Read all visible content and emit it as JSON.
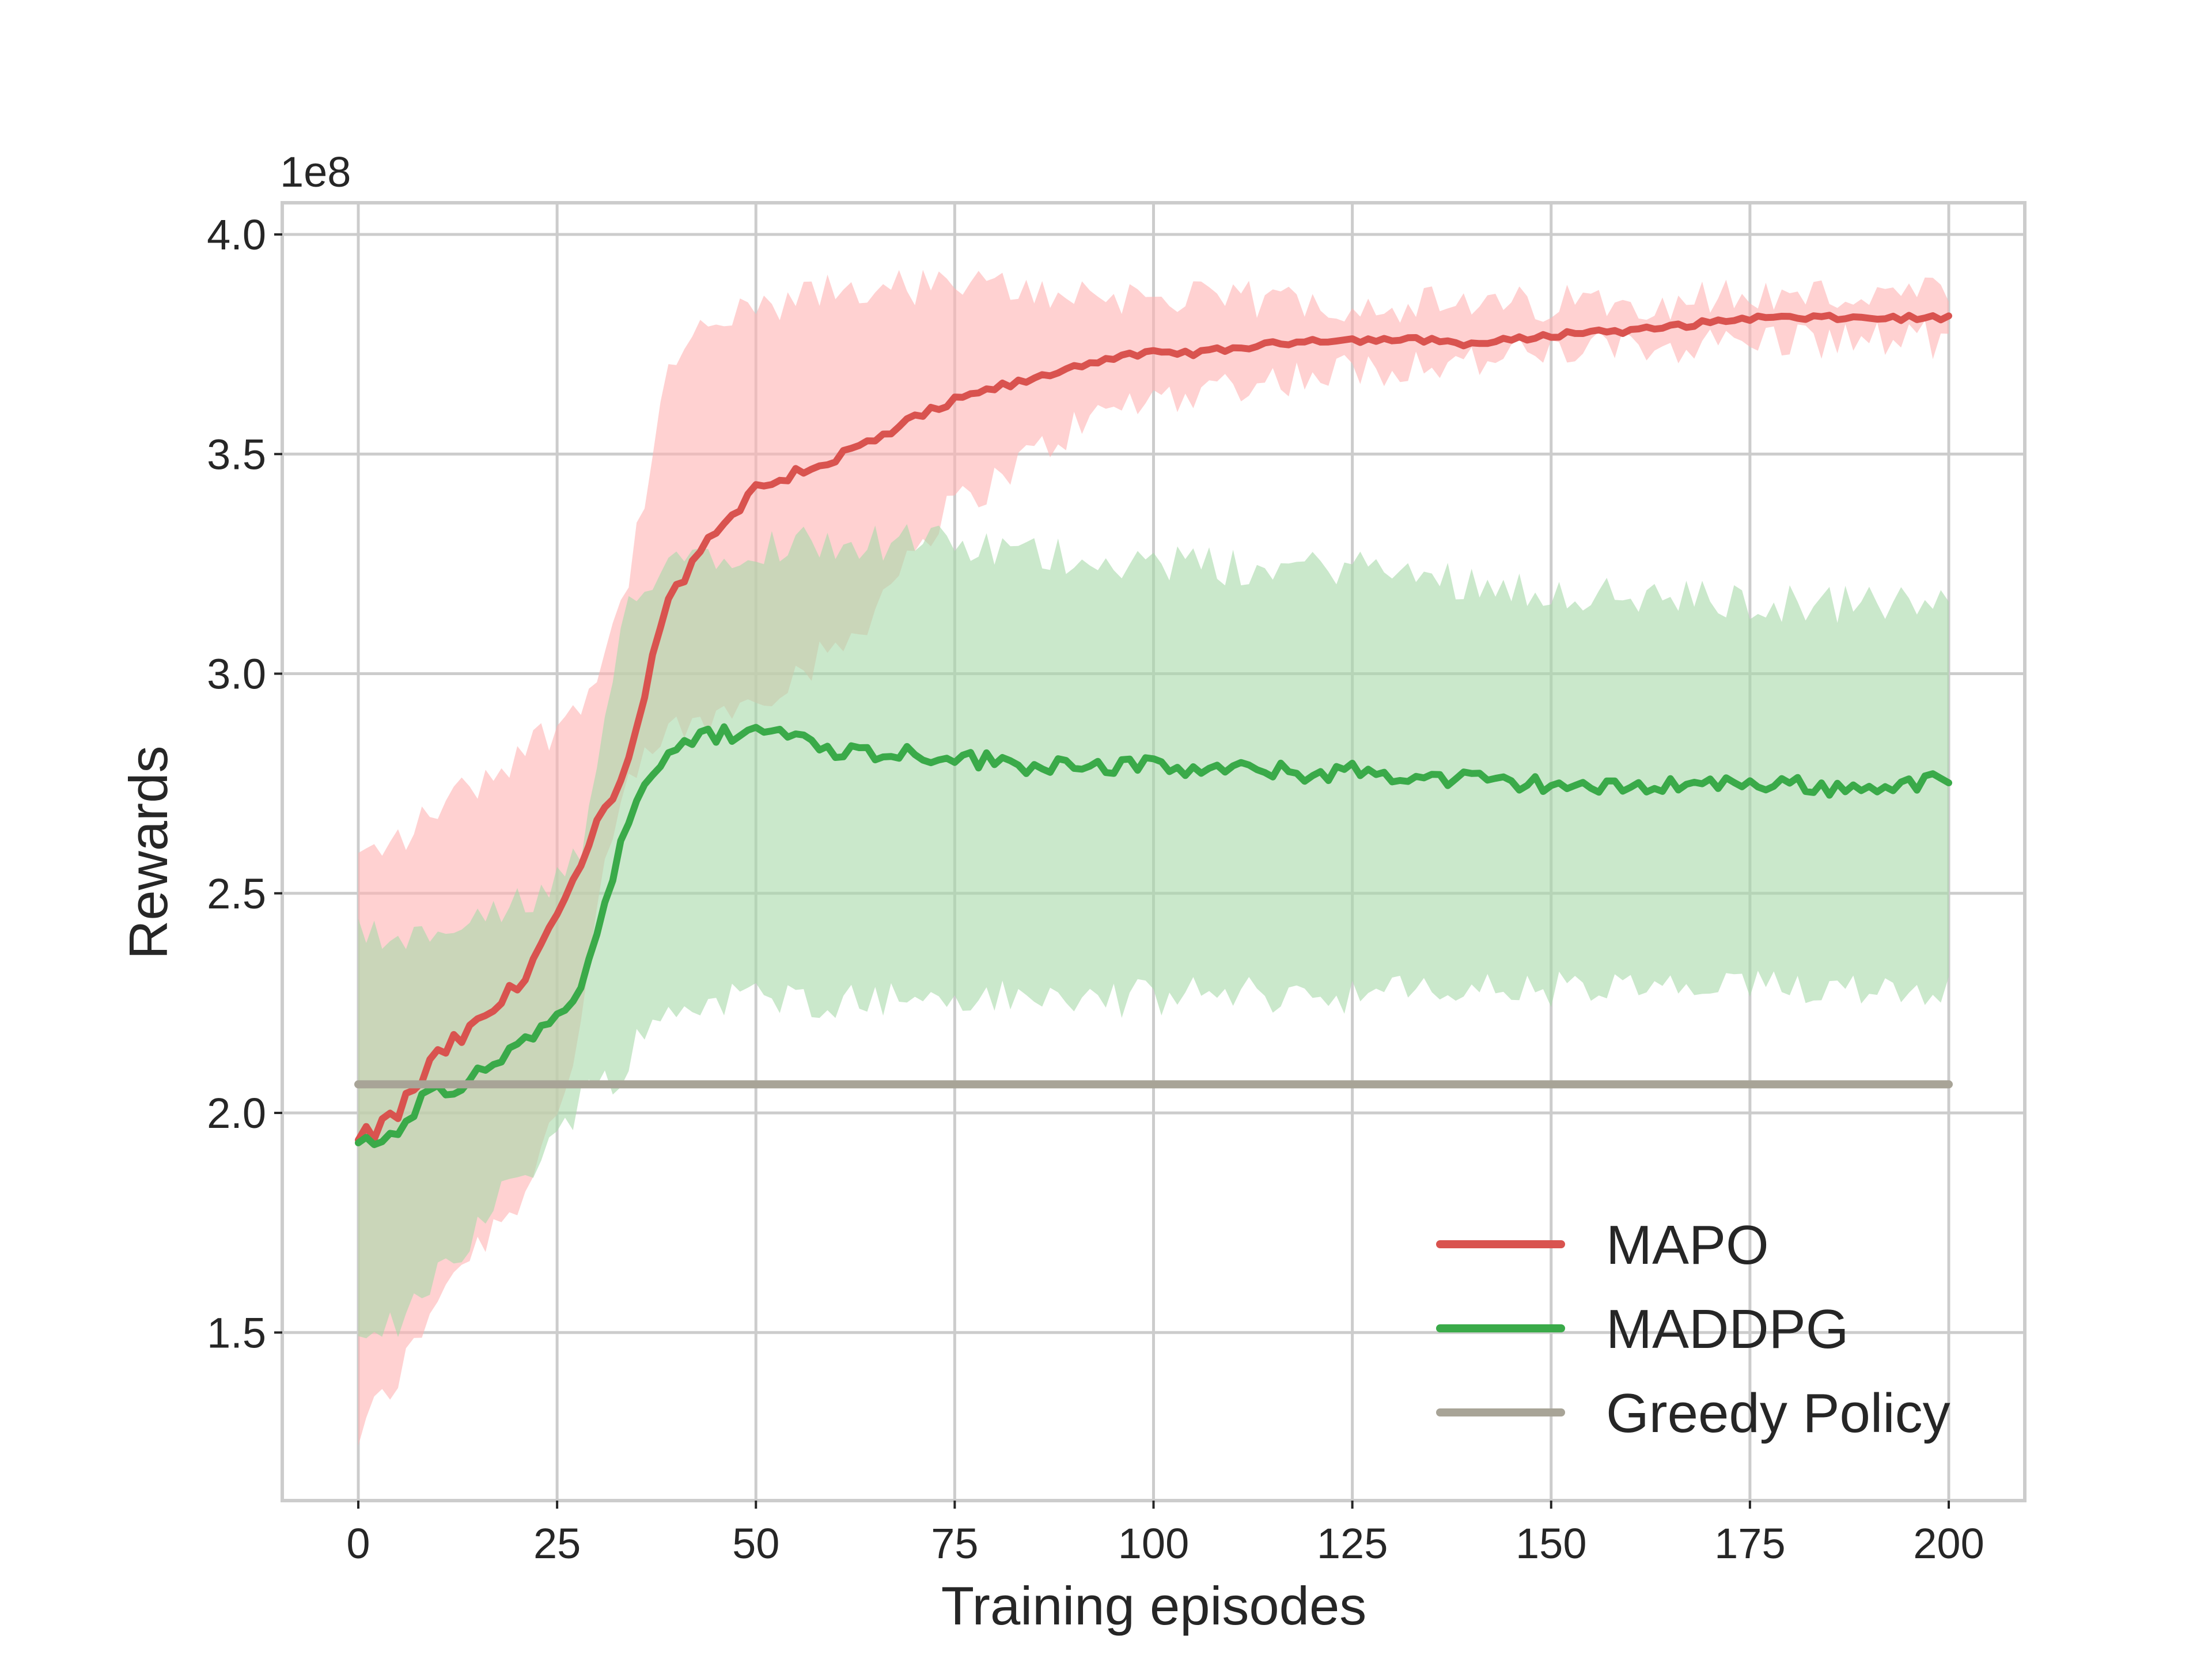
{
  "chart_data": {
    "type": "line",
    "xlabel": "Training episodes",
    "ylabel": "Rewards",
    "y_offset_text": "1e8",
    "xlim": [
      -10,
      210
    ],
    "ylim": [
      1.1,
      4.05
    ],
    "x_ticks": [
      0,
      25,
      50,
      75,
      100,
      125,
      150,
      175,
      200
    ],
    "y_ticks": [
      1.5,
      2.0,
      2.5,
      3.0,
      3.5,
      4.0
    ],
    "x_tick_labels": [
      "0",
      "25",
      "50",
      "75",
      "100",
      "125",
      "150",
      "175",
      "200"
    ],
    "y_tick_labels": [
      "1.5",
      "2.0",
      "2.5",
      "3.0",
      "3.5",
      "4.0"
    ],
    "grid": true,
    "legend_position": "lower-right",
    "series": [
      {
        "name": "MAPO",
        "color": "#d9534f",
        "band_color": "#ffb3b3",
        "keyframes": {
          "x": [
            0,
            3,
            5,
            8,
            10,
            15,
            20,
            25,
            28,
            30,
            33,
            36,
            38,
            40,
            45,
            50,
            55,
            60,
            65,
            70,
            75,
            80,
            85,
            90,
            95,
            100,
            105,
            110,
            115,
            120,
            125,
            130,
            135,
            140,
            145,
            150,
            155,
            160,
            165,
            170,
            175,
            180,
            185,
            190,
            195,
            200
          ],
          "mean": [
            1.93,
            1.97,
            2.0,
            2.08,
            2.13,
            2.2,
            2.29,
            2.45,
            2.55,
            2.66,
            2.75,
            2.95,
            3.12,
            3.2,
            3.33,
            3.42,
            3.46,
            3.49,
            3.53,
            3.58,
            3.62,
            3.65,
            3.67,
            3.7,
            3.72,
            3.73,
            3.73,
            3.74,
            3.75,
            3.76,
            3.76,
            3.76,
            3.76,
            3.75,
            3.76,
            3.77,
            3.78,
            3.78,
            3.79,
            3.8,
            3.81,
            3.81,
            3.81,
            3.81,
            3.81,
            3.81
          ],
          "lower": [
            1.26,
            1.35,
            1.4,
            1.5,
            1.6,
            1.7,
            1.8,
            2.0,
            2.2,
            2.45,
            2.7,
            2.8,
            2.85,
            2.87,
            2.9,
            2.95,
            3.0,
            3.05,
            3.15,
            3.3,
            3.38,
            3.44,
            3.5,
            3.56,
            3.6,
            3.63,
            3.64,
            3.66,
            3.67,
            3.68,
            3.69,
            3.7,
            3.71,
            3.71,
            3.72,
            3.73,
            3.74,
            3.74,
            3.75,
            3.75,
            3.76,
            3.76,
            3.76,
            3.76,
            3.76,
            3.76
          ],
          "upper": [
            2.58,
            2.6,
            2.62,
            2.66,
            2.7,
            2.75,
            2.82,
            2.88,
            2.95,
            3.0,
            3.15,
            3.4,
            3.6,
            3.72,
            3.8,
            3.82,
            3.85,
            3.87,
            3.88,
            3.88,
            3.88,
            3.88,
            3.87,
            3.87,
            3.86,
            3.86,
            3.85,
            3.85,
            3.85,
            3.85,
            3.84,
            3.84,
            3.84,
            3.83,
            3.84,
            3.84,
            3.85,
            3.85,
            3.85,
            3.86,
            3.86,
            3.86,
            3.86,
            3.86,
            3.86,
            3.86
          ]
        }
      },
      {
        "name": "MADDPG",
        "color": "#3aaa49",
        "band_color": "#a7d8a8",
        "keyframes": {
          "x": [
            0,
            3,
            5,
            8,
            10,
            13,
            15,
            20,
            25,
            28,
            30,
            33,
            35,
            38,
            40,
            45,
            50,
            55,
            60,
            65,
            70,
            75,
            80,
            85,
            90,
            95,
            100,
            105,
            110,
            115,
            120,
            125,
            130,
            135,
            140,
            145,
            150,
            155,
            160,
            165,
            170,
            175,
            180,
            185,
            190,
            195,
            200
          ],
          "mean": [
            1.94,
            1.93,
            1.95,
            2.03,
            2.06,
            2.04,
            2.09,
            2.15,
            2.22,
            2.28,
            2.4,
            2.62,
            2.72,
            2.8,
            2.84,
            2.86,
            2.87,
            2.86,
            2.83,
            2.82,
            2.82,
            2.81,
            2.8,
            2.79,
            2.8,
            2.79,
            2.79,
            2.78,
            2.78,
            2.78,
            2.77,
            2.78,
            2.77,
            2.76,
            2.76,
            2.75,
            2.75,
            2.74,
            2.74,
            2.75,
            2.75,
            2.75,
            2.75,
            2.74,
            2.74,
            2.75,
            2.76
          ],
          "lower": [
            1.45,
            1.5,
            1.52,
            1.6,
            1.65,
            1.7,
            1.74,
            1.85,
            1.95,
            2.03,
            2.06,
            2.1,
            2.16,
            2.21,
            2.24,
            2.26,
            2.26,
            2.26,
            2.26,
            2.26,
            2.26,
            2.26,
            2.26,
            2.26,
            2.26,
            2.26,
            2.26,
            2.27,
            2.27,
            2.27,
            2.27,
            2.27,
            2.27,
            2.28,
            2.28,
            2.28,
            2.28,
            2.28,
            2.28,
            2.28,
            2.28,
            2.28,
            2.29,
            2.29,
            2.29,
            2.29,
            2.29
          ],
          "upper": [
            2.43,
            2.38,
            2.36,
            2.4,
            2.42,
            2.4,
            2.44,
            2.47,
            2.52,
            2.58,
            2.75,
            3.1,
            3.2,
            3.25,
            3.27,
            3.28,
            3.29,
            3.3,
            3.3,
            3.3,
            3.3,
            3.29,
            3.28,
            3.27,
            3.27,
            3.26,
            3.25,
            3.25,
            3.24,
            3.24,
            3.24,
            3.25,
            3.23,
            3.22,
            3.21,
            3.2,
            3.19,
            3.18,
            3.17,
            3.17,
            3.17,
            3.16,
            3.16,
            3.16,
            3.16,
            3.16,
            3.15
          ]
        }
      },
      {
        "name": "Greedy Policy",
        "color": "#a8a497",
        "x": [
          0,
          200
        ],
        "values": [
          2.065,
          2.065
        ]
      }
    ]
  }
}
